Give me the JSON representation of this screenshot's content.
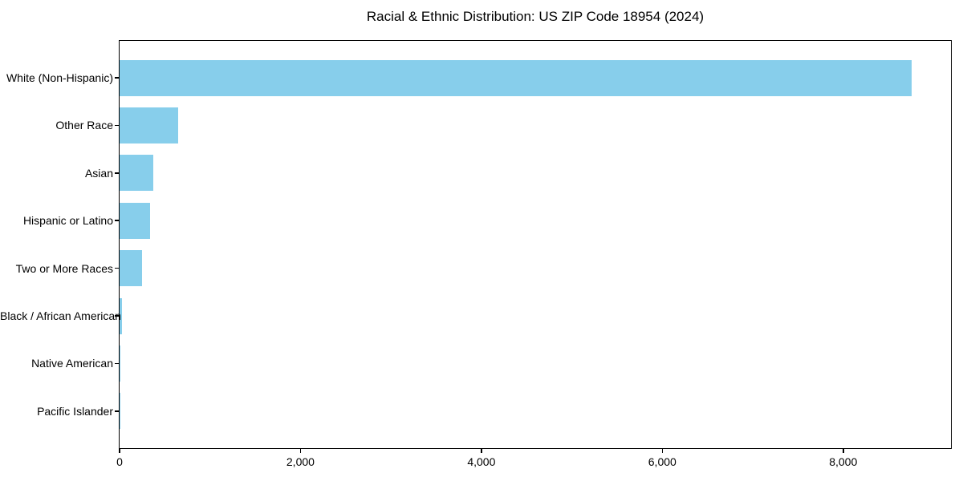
{
  "chart_data": {
    "type": "bar",
    "orientation": "horizontal",
    "title": "Racial & Ethnic Distribution: US ZIP Code 18954 (2024)",
    "categories": [
      "White (Non-Hispanic)",
      "Other Race",
      "Asian",
      "Hispanic or Latino",
      "Two or More Races",
      "Black / African American",
      "Native American",
      "Pacific Islander"
    ],
    "values": [
      8760,
      645,
      370,
      340,
      250,
      30,
      5,
      2
    ],
    "xlabel": "",
    "ylabel": "",
    "xlim": [
      0,
      9200
    ],
    "xticks": [
      0,
      2000,
      4000,
      6000,
      8000
    ],
    "xtick_labels": [
      "0",
      "2,000",
      "4,000",
      "6,000",
      "8,000"
    ],
    "bar_color": "#87CEEB",
    "axis_color": "#000000",
    "background_color": "#FFFFFF",
    "grid": false,
    "legend": false
  }
}
